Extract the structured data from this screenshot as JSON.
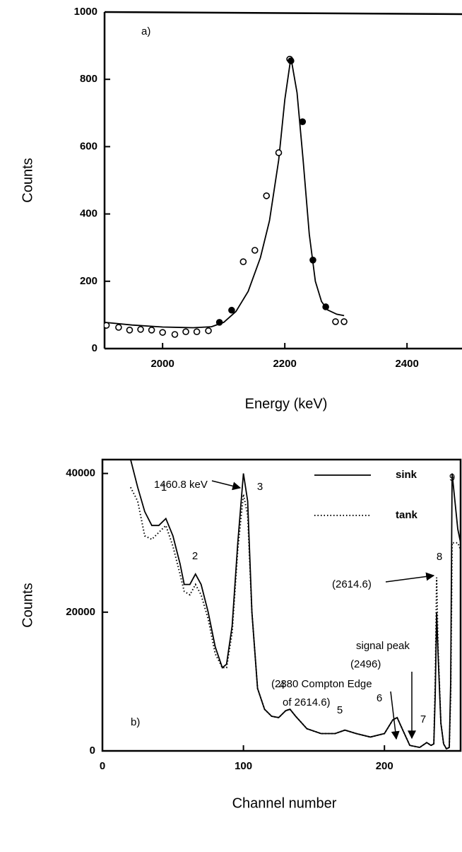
{
  "chart_data": [
    {
      "type": "scatter",
      "x_label": "Energy (keV)",
      "y_label": "Counts",
      "annotations": [
        "a)"
      ],
      "xlim": [
        1905,
        2490
      ],
      "ylim": [
        0,
        1000
      ],
      "xticks": [
        2000,
        2200,
        2400
      ],
      "yticks": [
        0,
        200,
        400,
        600,
        800,
        1000
      ],
      "series": [
        {
          "mode": "line",
          "color": "#000000",
          "x": [
            1905,
            1950,
            2000,
            2050,
            2080,
            2100,
            2120,
            2140,
            2160,
            2175,
            2190,
            2200,
            2210,
            2220,
            2230,
            2240,
            2250,
            2260,
            2270,
            2285,
            2297
          ],
          "values": [
            78,
            70,
            64,
            62,
            65,
            78,
            110,
            170,
            270,
            380,
            560,
            740,
            865,
            760,
            560,
            340,
            200,
            140,
            115,
            102,
            98
          ]
        },
        {
          "mode": "open",
          "color": "#000000",
          "x": [
            1908,
            1928,
            1946,
            1964,
            1982,
            2000,
            2020,
            2038,
            2056,
            2075,
            2132,
            2151,
            2170,
            2190,
            2208,
            2283,
            2297
          ],
          "values": [
            69,
            63,
            55,
            57,
            55,
            48,
            42,
            50,
            50,
            53,
            258,
            292,
            454,
            582,
            860,
            80,
            80
          ]
        },
        {
          "mode": "filled",
          "color": "#000000",
          "x": [
            2093,
            2113,
            2210,
            2229,
            2246,
            2267
          ],
          "values": [
            78,
            114,
            855,
            674,
            263,
            124
          ]
        }
      ]
    },
    {
      "type": "line",
      "x_label": "Channel number",
      "y_label": "Counts",
      "annotations": [
        "1460.8 keV",
        "1",
        "2",
        "3",
        "4",
        "5",
        "6",
        "7",
        "8",
        "9",
        "(2614.6)",
        "signal peak",
        "(2496)",
        "(2380 Compton Edge",
        "of 2614.6)",
        "b)"
      ],
      "xlim": [
        0,
        254
      ],
      "ylim": [
        0,
        42000
      ],
      "xticks": [
        0,
        100,
        200
      ],
      "yticks": [
        0,
        20000,
        40000
      ],
      "legend": "upper right",
      "series": [
        {
          "name": "sink",
          "mode": "solid",
          "color": "#000000",
          "x": [
            20,
            25,
            30,
            35,
            40,
            45,
            50,
            55,
            58,
            62,
            66,
            70,
            75,
            80,
            85,
            88,
            92,
            96,
            100,
            103,
            106,
            110,
            115,
            120,
            125,
            130,
            133,
            137,
            145,
            155,
            165,
            172,
            180,
            190,
            200,
            206,
            209,
            213,
            218,
            225,
            230,
            233,
            235,
            236,
            237,
            238,
            240,
            242,
            244,
            246,
            247,
            248,
            250,
            252,
            254
          ],
          "values": [
            42000,
            38000,
            34500,
            32500,
            32500,
            33500,
            31000,
            27000,
            24000,
            24000,
            25500,
            24000,
            20000,
            15000,
            12000,
            12500,
            18000,
            30000,
            40000,
            36000,
            20000,
            9000,
            6000,
            5000,
            4800,
            5800,
            6000,
            5000,
            3200,
            2500,
            2500,
            3000,
            2500,
            2000,
            2500,
            4500,
            4800,
            3000,
            800,
            500,
            1200,
            800,
            1000,
            8000,
            20000,
            14000,
            4000,
            1000,
            300,
            500,
            10000,
            40000,
            36000,
            32000,
            30000
          ]
        },
        {
          "name": "tank",
          "mode": "dotted",
          "color": "#000000",
          "x": [
            20,
            25,
            30,
            35,
            40,
            45,
            50,
            55,
            58,
            62,
            66,
            70,
            75,
            80,
            85,
            88,
            92,
            96,
            100,
            103,
            106,
            110,
            115,
            120,
            125,
            130,
            133,
            137,
            145,
            155,
            165,
            172,
            180,
            190,
            200,
            206,
            209,
            213,
            218,
            225,
            230,
            233,
            235,
            236,
            237,
            238,
            240,
            242,
            244,
            246,
            247,
            248,
            250,
            252,
            254
          ],
          "values": [
            38000,
            36000,
            31000,
            30500,
            31500,
            32500,
            29500,
            25500,
            23000,
            22500,
            24000,
            22500,
            19000,
            14000,
            12000,
            12000,
            17000,
            29000,
            37000,
            34000,
            20000,
            9000,
            6000,
            5000,
            4800,
            5800,
            6000,
            5000,
            3200,
            2500,
            2500,
            3000,
            2500,
            2000,
            2500,
            4500,
            4800,
            3000,
            800,
            500,
            1200,
            800,
            1000,
            10000,
            25000,
            15000,
            4000,
            1000,
            300,
            500,
            8000,
            30000,
            30000,
            30000,
            29000
          ]
        }
      ]
    }
  ]
}
